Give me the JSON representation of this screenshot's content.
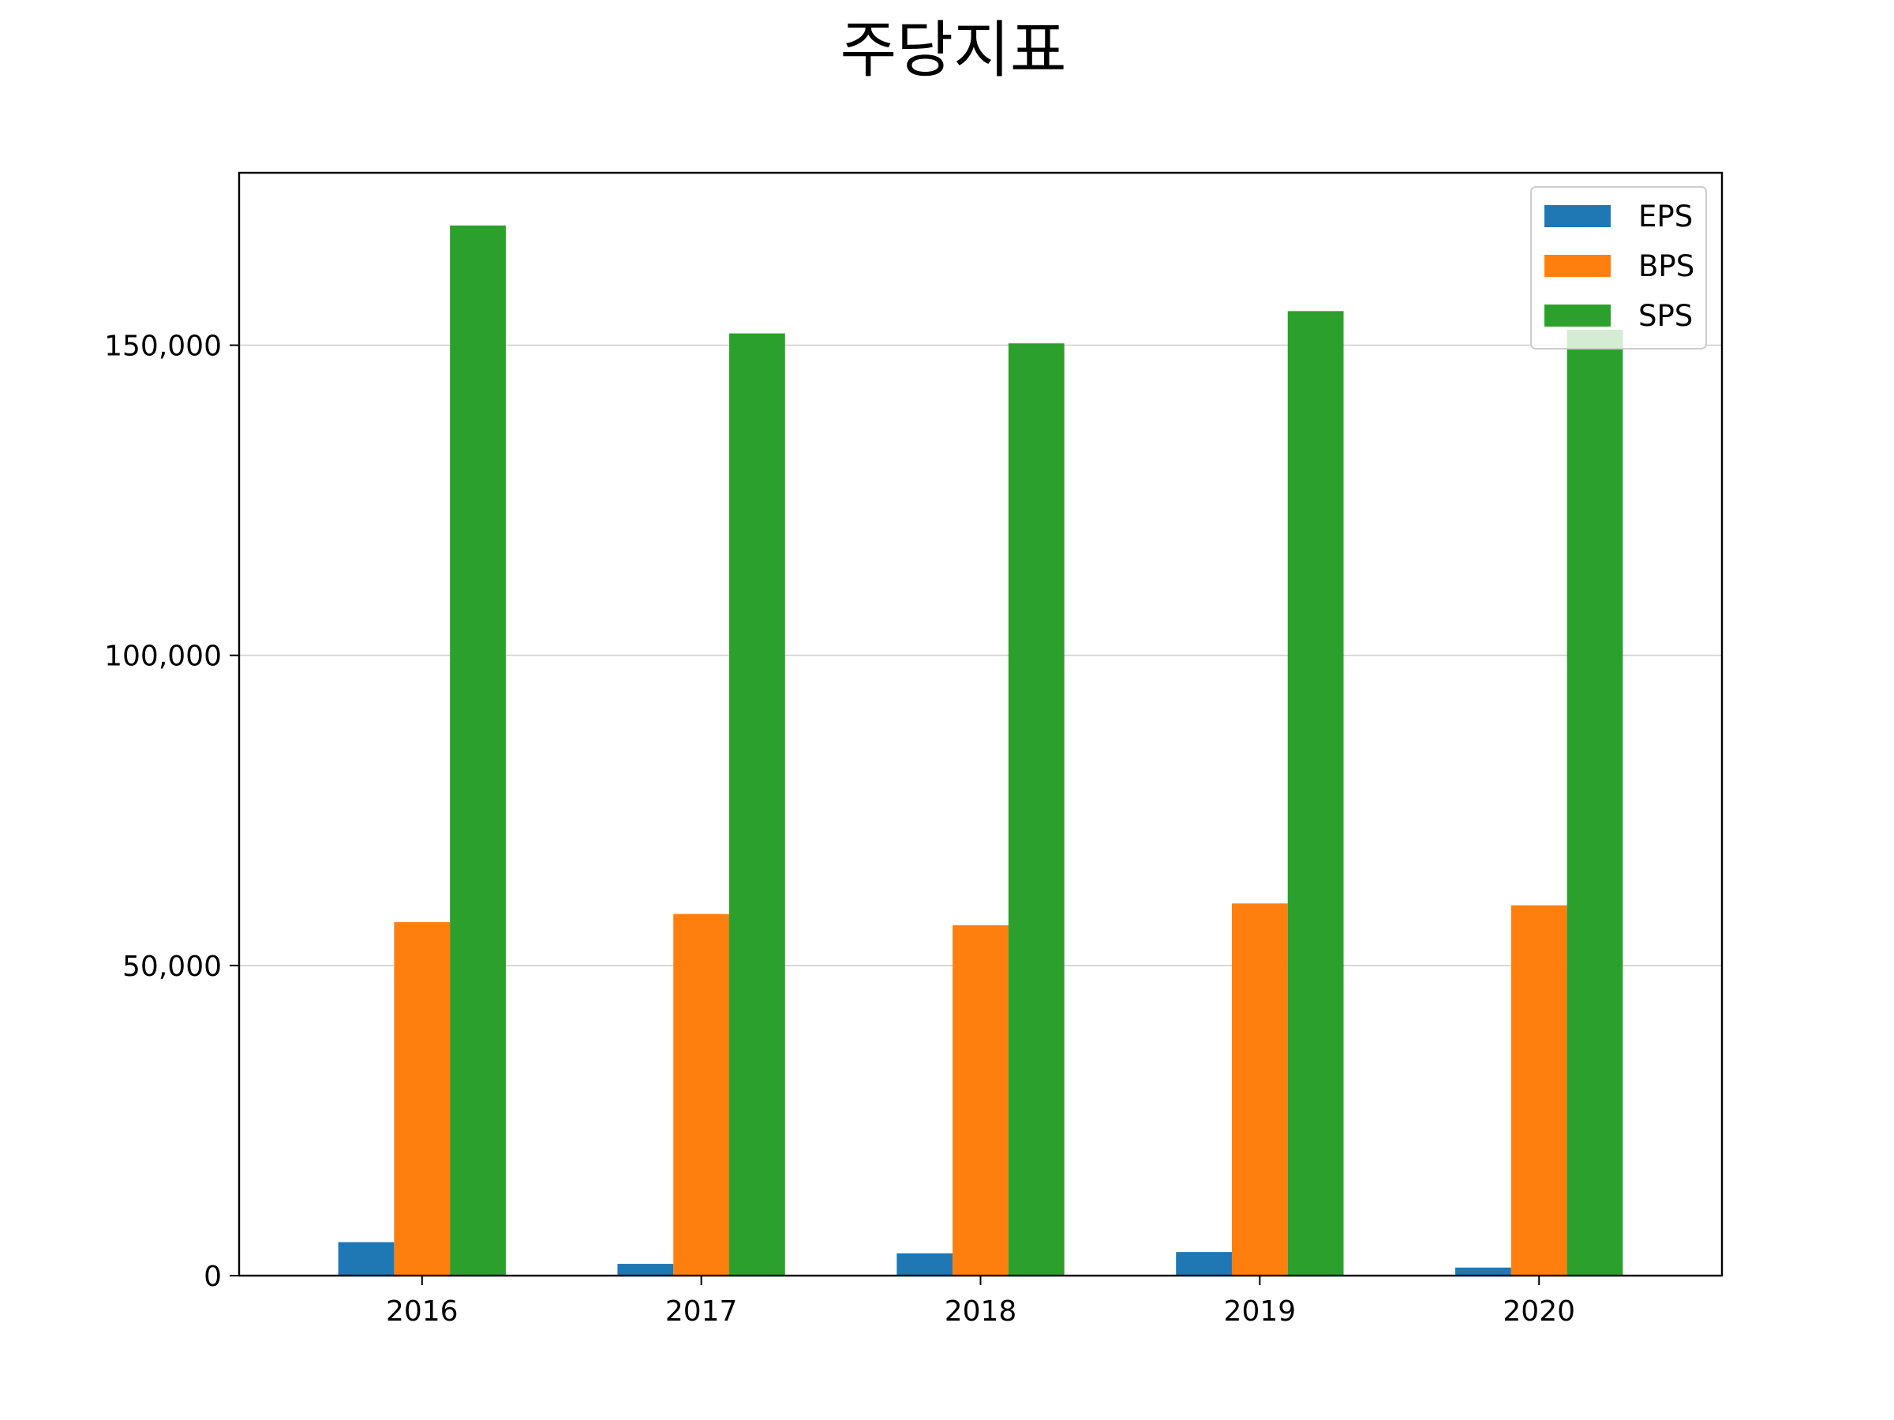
{
  "chart_data": {
    "type": "bar",
    "title": "주당지표",
    "xlabel": "",
    "ylabel": "",
    "categories": [
      "2016",
      "2017",
      "2018",
      "2019",
      "2020"
    ],
    "series": [
      {
        "name": "EPS",
        "color": "#1f77b4",
        "values": [
          5400,
          1900,
          3600,
          3800,
          1300
        ]
      },
      {
        "name": "BPS",
        "color": "#ff7f0e",
        "values": [
          57000,
          58300,
          56500,
          60000,
          59700
        ]
      },
      {
        "name": "SPS",
        "color": "#2ca02c",
        "values": [
          169300,
          151900,
          150300,
          155500,
          152500
        ]
      }
    ],
    "ylim": [
      0,
      177800
    ],
    "yticks": [
      0,
      50000,
      100000,
      150000
    ],
    "ytick_labels": [
      "0",
      "50,000",
      "100,000",
      "150,000"
    ],
    "grid": "horizontal",
    "legend_position": "top-right"
  }
}
